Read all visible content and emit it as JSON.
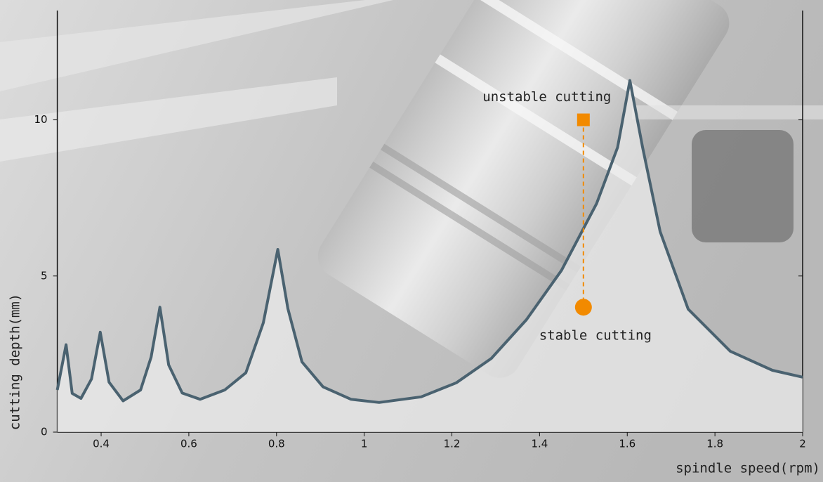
{
  "chart_data": {
    "type": "line",
    "x_label": "spindle speed(rpm)",
    "y_label": "cutting depth(mm)",
    "xlim": [
      0.3,
      2
    ],
    "ylim": [
      0,
      13.5
    ],
    "xticks": [
      0.4,
      0.6,
      0.8,
      1,
      1.2,
      1.4,
      1.6,
      1.8,
      2
    ],
    "yticks": [
      0,
      5,
      10
    ],
    "series": [
      {
        "color": "#4a6270",
        "x": [
          0.3,
          0.32,
          0.334,
          0.354,
          0.378,
          0.398,
          0.418,
          0.45,
          0.49,
          0.514,
          0.534,
          0.554,
          0.585,
          0.626,
          0.682,
          0.73,
          0.77,
          0.803,
          0.826,
          0.858,
          0.906,
          0.97,
          1.034,
          1.13,
          1.21,
          1.29,
          1.37,
          1.45,
          1.53,
          1.578,
          1.606,
          1.635,
          1.675,
          1.739,
          1.835,
          1.931,
          2.0
        ],
        "values": [
          1.35,
          2.8,
          1.24,
          1.08,
          1.7,
          3.2,
          1.6,
          1.0,
          1.35,
          2.4,
          4.0,
          2.15,
          1.25,
          1.05,
          1.35,
          1.9,
          3.5,
          5.85,
          3.95,
          2.25,
          1.45,
          1.05,
          0.95,
          1.13,
          1.58,
          2.36,
          3.6,
          5.18,
          7.32,
          9.12,
          11.26,
          9.12,
          6.42,
          3.94,
          2.59,
          1.98,
          1.76
        ]
      }
    ],
    "points": [
      {
        "name": "unstable cutting",
        "x": 1.5,
        "y": 10,
        "marker": "square",
        "color": "#f28a00"
      },
      {
        "name": "stable cutting",
        "x": 1.5,
        "y": 4,
        "marker": "circle",
        "color": "#f28a00"
      }
    ]
  }
}
